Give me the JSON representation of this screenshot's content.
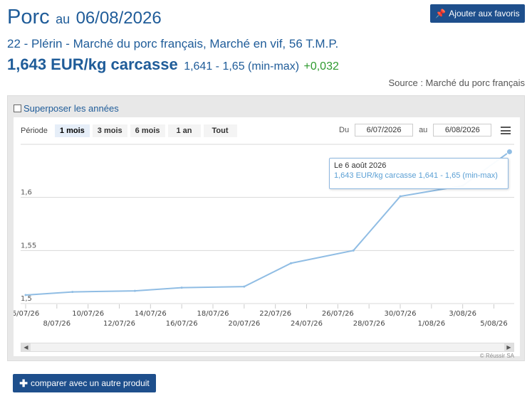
{
  "header": {
    "product": "Porc",
    "date_prefix": "au",
    "date": "06/08/2026",
    "favorite_label": "Ajouter aux favoris",
    "subtitle": "22 - Plérin - Marché du porc français, Marché en vif, 56 T.M.P.",
    "price": "1,643 EUR/kg carcasse",
    "range": "1,641 - 1,65 (min-max)",
    "delta": "+0,032",
    "source": "Source : Marché du porc français"
  },
  "panel": {
    "overlay_label": "Superposer les années",
    "period_label": "Période",
    "periods": [
      "1 mois",
      "3 mois",
      "6 mois",
      "1 an",
      "Tout"
    ],
    "active_period": "1 mois",
    "from_label": "Du",
    "from_date": "6/07/2026",
    "to_label": "au",
    "to_date": "6/08/2026",
    "credit": "© Réussir SA",
    "compare_label": "comparer avec un autre produit"
  },
  "tooltip": {
    "line1": "Le 6 août 2026",
    "line2": "1,643 EUR/kg carcasse 1,641 - 1,65 (min-max)"
  },
  "colors": {
    "brand": "#1e4f8c",
    "line": "#90bde4",
    "delta": "#2e9a2e"
  },
  "chart_data": {
    "type": "line",
    "x_tick_labels_top": [
      "6/07/26",
      "10/07/26",
      "14/07/26",
      "18/07/26",
      "22/07/26",
      "26/07/26",
      "30/07/26",
      "3/08/26"
    ],
    "x_tick_labels_bottom": [
      "8/07/26",
      "12/07/26",
      "16/07/26",
      "20/07/26",
      "24/07/26",
      "28/07/26",
      "1/08/26",
      "5/08/26"
    ],
    "y_tick_labels": [
      "1,5",
      "1,55",
      "1,6"
    ],
    "ylim": [
      1.5,
      1.65
    ],
    "grid": true,
    "series": [
      {
        "x": [
          "2026-07-06",
          "2026-07-09",
          "2026-07-13",
          "2026-07-16",
          "2026-07-20",
          "2026-07-23",
          "2026-07-27",
          "2026-07-30",
          "2026-08-03",
          "2026-08-06"
        ],
        "values": [
          1.508,
          1.511,
          1.512,
          1.515,
          1.516,
          1.538,
          1.55,
          1.601,
          1.611,
          1.643
        ]
      }
    ]
  }
}
